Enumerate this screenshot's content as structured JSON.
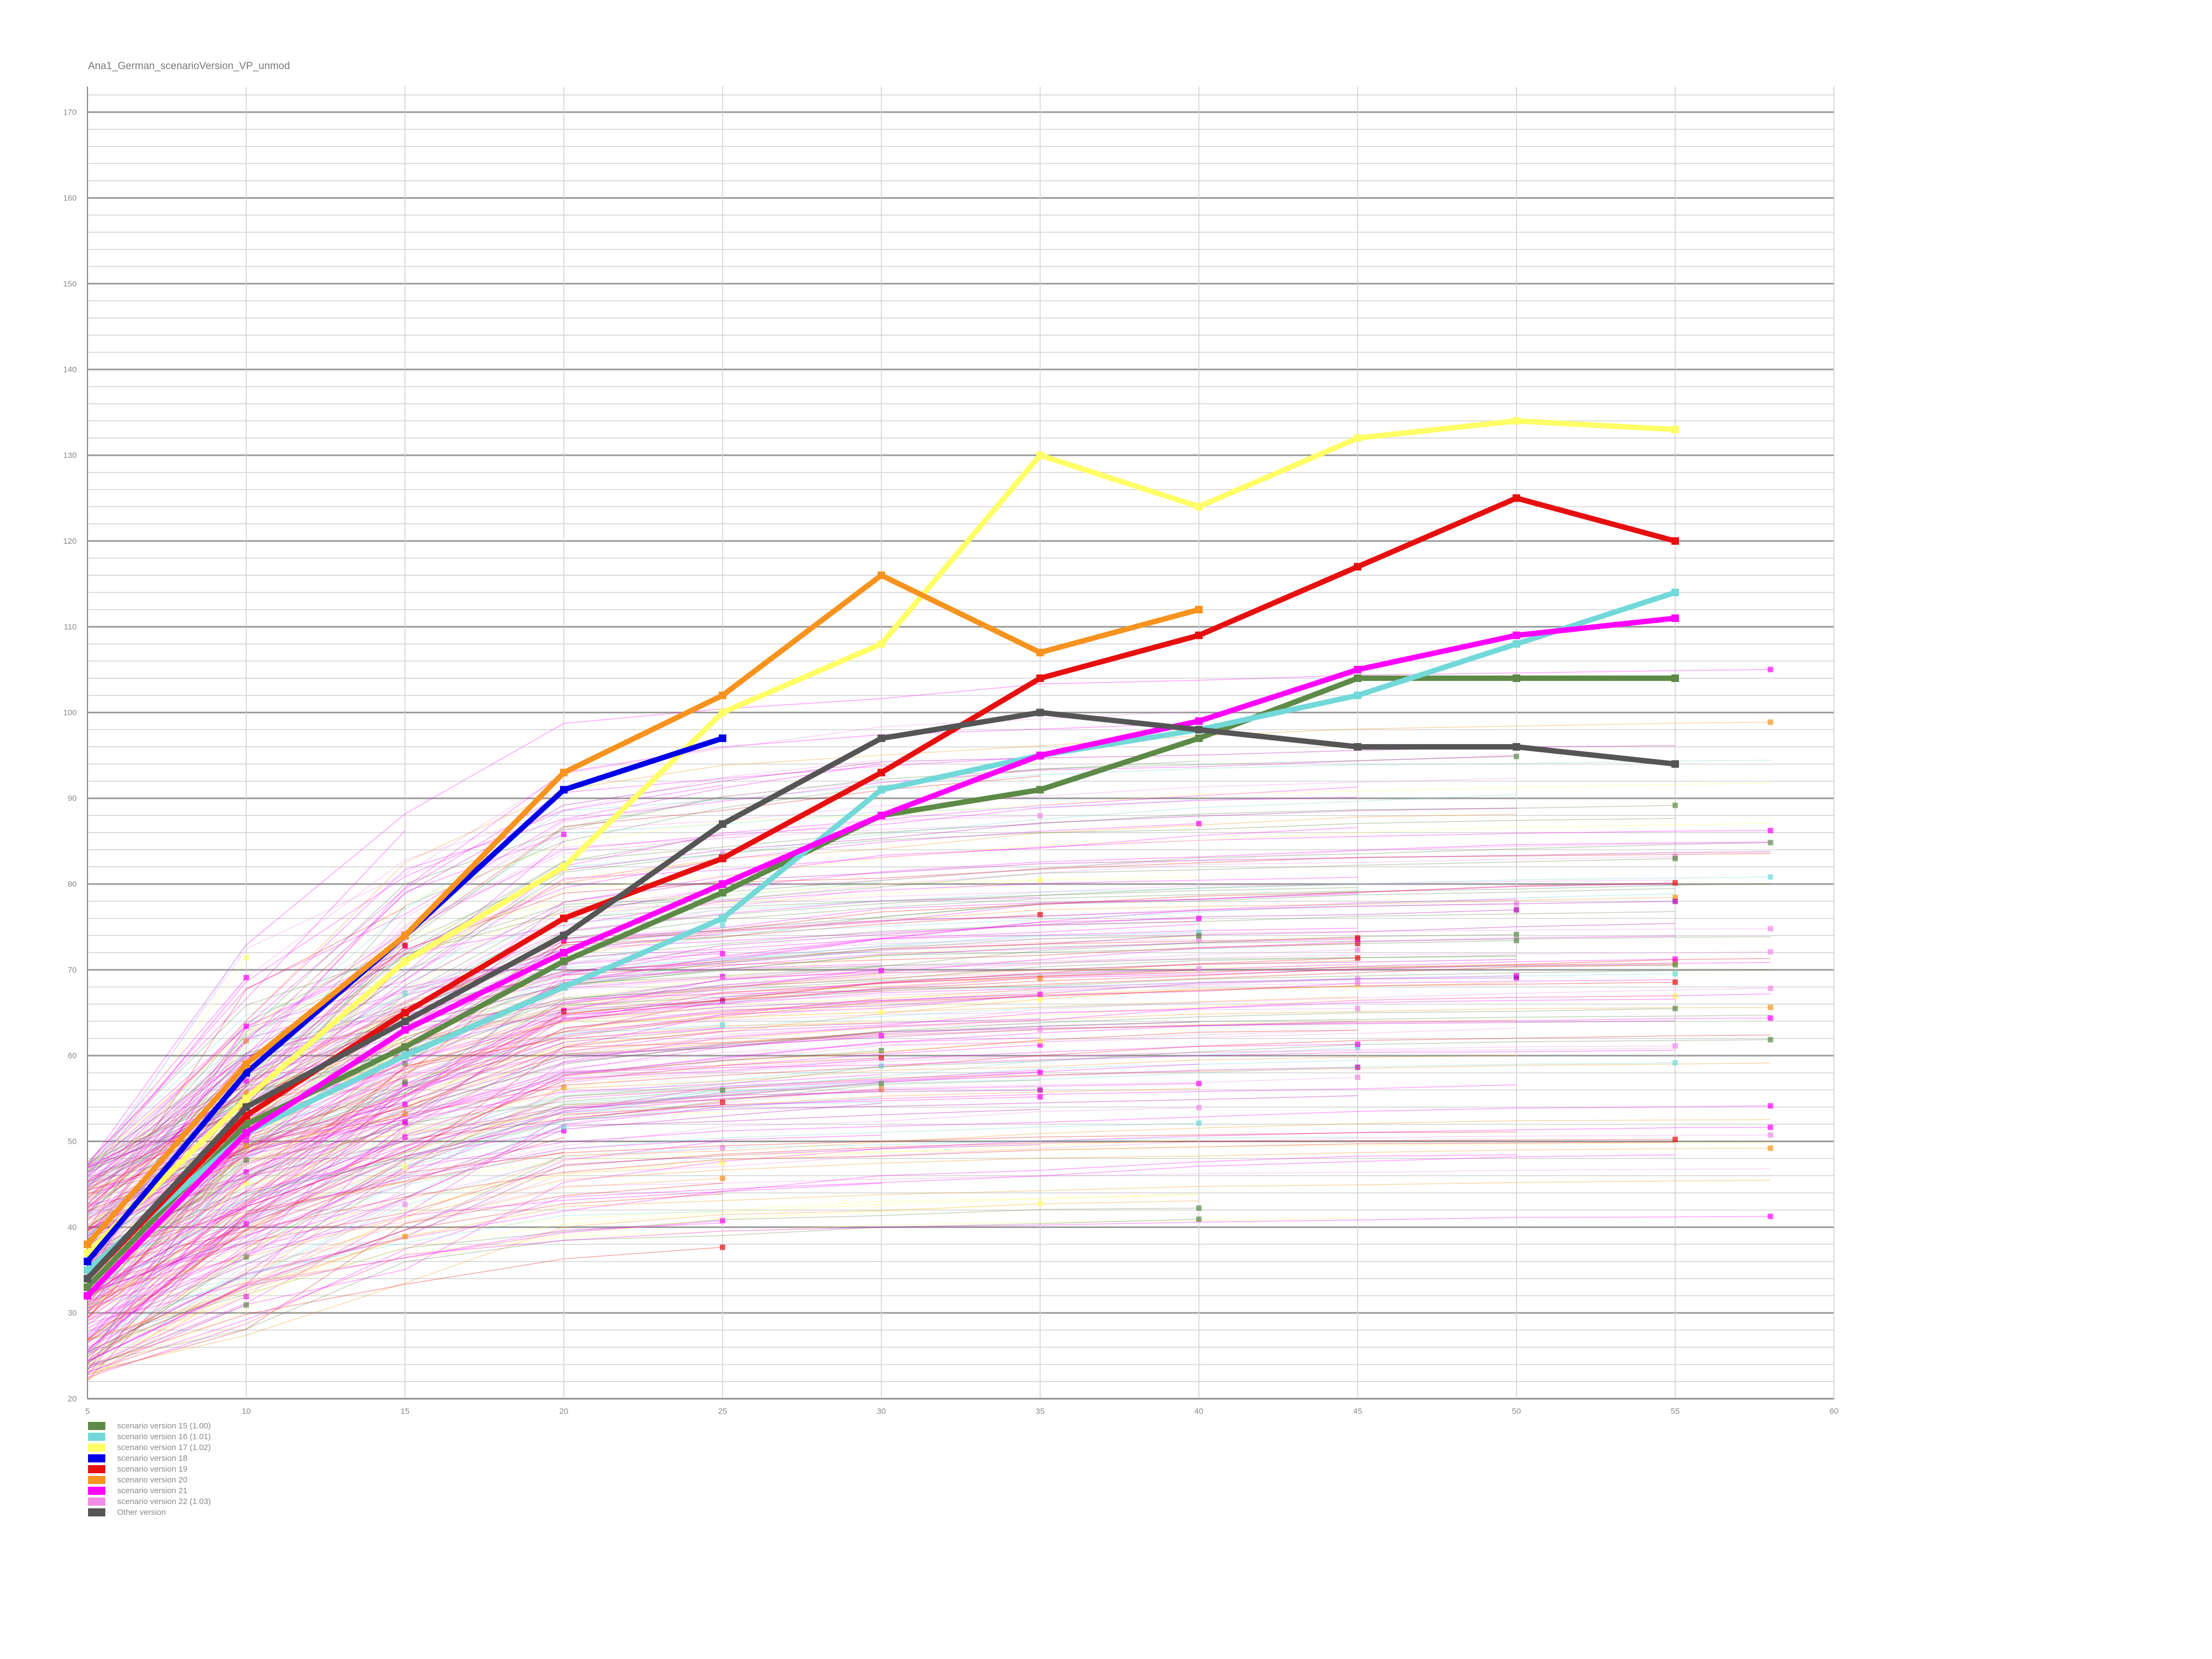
{
  "chart_data": {
    "type": "line",
    "title": "Ana1_German_scenarioVersion_VP_unmod",
    "xlim": [
      5,
      60
    ],
    "ylim": [
      20,
      173
    ],
    "x_ticks": [
      5,
      10,
      15,
      20,
      25,
      30,
      35,
      40,
      45,
      50,
      55,
      60
    ],
    "y_ticks": [
      20,
      30,
      40,
      50,
      60,
      70,
      80,
      90,
      100,
      110,
      120,
      130,
      140,
      150,
      160,
      170
    ],
    "grid": "horizontal minor every 2, vertical every 5",
    "legend_position": "bottom-left",
    "series": [
      {
        "name": "scenario version 15 (1.00)",
        "color": "#5d8a47",
        "x": [
          5,
          10,
          15,
          20,
          25,
          30,
          35,
          40,
          45,
          50,
          55
        ],
        "y": [
          33,
          52,
          61,
          71,
          79,
          88,
          91,
          97,
          104,
          104,
          104
        ]
      },
      {
        "name": "scenario version 16 (1.01)",
        "color": "#72d8d8",
        "x": [
          5,
          10,
          15,
          20,
          25,
          30,
          35,
          40,
          45,
          50,
          55
        ],
        "y": [
          35,
          51,
          60,
          68,
          76,
          91,
          95,
          98,
          102,
          108,
          114
        ]
      },
      {
        "name": "scenario version 17 (1.02)",
        "color": "#ffff66",
        "x": [
          5,
          10,
          15,
          20,
          25,
          30,
          35,
          40,
          45,
          50,
          55
        ],
        "y": [
          37,
          55,
          71,
          82,
          100,
          108,
          130,
          124,
          132,
          134,
          133
        ]
      },
      {
        "name": "scenario version 18",
        "color": "#0000e6",
        "x": [
          5,
          10,
          15,
          20,
          25
        ],
        "y": [
          36,
          58,
          74,
          91,
          97
        ]
      },
      {
        "name": "scenario version 19",
        "color": "#e60f0f",
        "x": [
          5,
          10,
          15,
          20,
          25,
          30,
          35,
          40,
          45,
          50,
          55
        ],
        "y": [
          34,
          53,
          65,
          76,
          83,
          93,
          104,
          109,
          117,
          125,
          120
        ]
      },
      {
        "name": "scenario version 20",
        "color": "#f7931e",
        "x": [
          5,
          10,
          15,
          20,
          25,
          30,
          35,
          40
        ],
        "y": [
          38,
          59,
          74,
          93,
          102,
          116,
          107,
          112
        ]
      },
      {
        "name": "scenario version 21",
        "color": "#ff00ff",
        "x": [
          5,
          10,
          15,
          20,
          25,
          30,
          35,
          40,
          45,
          50,
          55
        ],
        "y": [
          32,
          51,
          63,
          72,
          80,
          88,
          95,
          99,
          105,
          109,
          111
        ]
      },
      {
        "name": "scenario version 22 (1.03)",
        "color": "#f08ce8",
        "x": [],
        "y": []
      },
      {
        "name": "Other version",
        "color": "#555555",
        "x": [
          5,
          10,
          15,
          20,
          25,
          30,
          35,
          40,
          45,
          50,
          55
        ],
        "y": [
          34,
          54,
          64,
          74,
          87,
          97,
          100,
          98,
          96,
          96,
          94
        ]
      }
    ]
  }
}
